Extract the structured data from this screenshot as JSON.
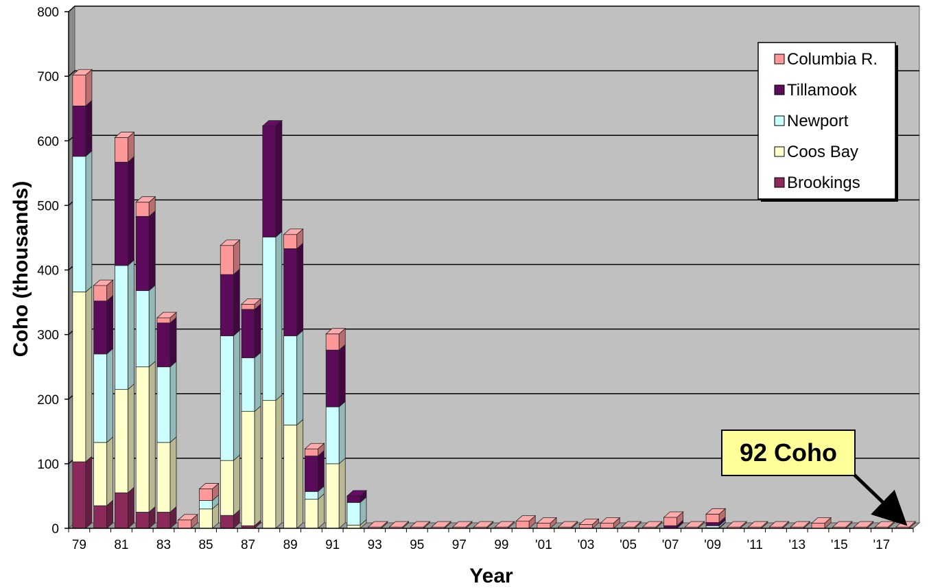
{
  "chart_data": {
    "type": "bar",
    "stacked": true,
    "style": "3d",
    "ylabel": "Coho (thousands)",
    "xlabel": "Year",
    "ylim": [
      0,
      800
    ],
    "yticks": [
      "0",
      "100",
      "200",
      "300",
      "400",
      "500",
      "600",
      "700",
      "800"
    ],
    "grid": true,
    "legend_position": "top-right",
    "categories": [
      "79",
      "80",
      "81",
      "82",
      "83",
      "84",
      "85",
      "86",
      "87",
      "88",
      "89",
      "90",
      "91",
      "92",
      "93",
      "94",
      "95",
      "96",
      "97",
      "98",
      "99",
      "'00",
      "'01",
      "'02",
      "'03",
      "'04",
      "'05",
      "'06",
      "'07",
      "'08",
      "'09",
      "'10",
      "'11",
      "'12",
      "'13",
      "'14",
      "'15",
      "'16",
      "'17",
      "'18"
    ],
    "tick_labels": [
      "79",
      "81",
      "83",
      "85",
      "87",
      "89",
      "91",
      "93",
      "95",
      "97",
      "99",
      "'01",
      "'03",
      "'05",
      "'07",
      "'09",
      "'11",
      "'13",
      "'15",
      "'17"
    ],
    "series": [
      {
        "name": "Brookings",
        "color": "#8b2a5a",
        "values": [
          103,
          35,
          55,
          25,
          25,
          0,
          0,
          20,
          4,
          0,
          0,
          0,
          0,
          0,
          0,
          0,
          0,
          0,
          0,
          0,
          0,
          0,
          0,
          0,
          0,
          0,
          0,
          0,
          0,
          0,
          0,
          0,
          0,
          0,
          0,
          0,
          0,
          0,
          0,
          0
        ]
      },
      {
        "name": "Coos Bay",
        "color": "#ffffcc",
        "values": [
          263,
          98,
          160,
          225,
          108,
          0,
          30,
          85,
          177,
          198,
          160,
          45,
          100,
          5,
          0,
          0,
          0,
          0,
          0,
          0,
          0,
          0,
          0,
          0,
          0,
          0,
          0,
          0,
          0,
          0,
          1,
          0,
          0,
          0,
          0,
          0,
          0,
          0,
          0,
          0
        ]
      },
      {
        "name": "Newport",
        "color": "#ccffff",
        "values": [
          210,
          137,
          192,
          118,
          117,
          0,
          13,
          193,
          83,
          253,
          138,
          12,
          88,
          35,
          0,
          0,
          0,
          0,
          0,
          0,
          0,
          0,
          0,
          0,
          0,
          0,
          0,
          0,
          0,
          0,
          3,
          0,
          0,
          0,
          0,
          0,
          0,
          0,
          0,
          0
        ]
      },
      {
        "name": "Tillamook",
        "color": "#5c0a5a",
        "values": [
          78,
          82,
          160,
          115,
          68,
          0,
          0,
          95,
          75,
          172,
          135,
          55,
          88,
          10,
          0,
          0,
          0,
          0,
          0,
          0,
          0,
          0,
          0,
          0,
          0,
          0,
          0,
          0,
          4,
          0,
          5,
          0,
          0,
          0,
          0,
          0,
          0,
          0,
          0,
          0
        ]
      },
      {
        "name": "Columbia R.",
        "color": "#ff9999",
        "values": [
          48,
          24,
          38,
          22,
          8,
          13,
          18,
          45,
          8,
          0,
          22,
          11,
          25,
          0,
          2,
          2,
          2,
          2,
          2,
          2,
          2,
          11,
          8,
          2,
          6,
          8,
          2,
          2,
          13,
          2,
          13,
          2,
          2,
          2,
          2,
          8,
          2,
          2,
          2,
          2
        ]
      }
    ],
    "annotations": [
      {
        "text": "92 Coho",
        "points_to": "'18"
      }
    ]
  },
  "colors": {
    "plot_background": "#c0c0c0",
    "grid": "#000000",
    "callout_fill": "#ffff99"
  }
}
